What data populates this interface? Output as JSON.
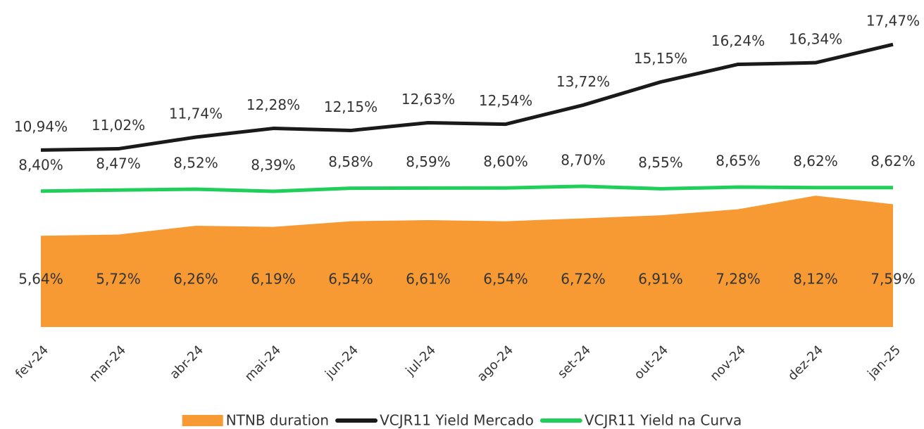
{
  "chart_data": {
    "type": "line",
    "categories": [
      "fev-24",
      "mar-24",
      "abr-24",
      "mai-24",
      "jun-24",
      "jul-24",
      "ago-24",
      "set-24",
      "out-24",
      "nov-24",
      "dez-24",
      "jan-25"
    ],
    "ylim": [
      0,
      20
    ],
    "series": [
      {
        "name": "NTNB duration",
        "type": "area",
        "color": "#f79a33",
        "values": [
          5.64,
          5.72,
          6.26,
          6.19,
          6.54,
          6.61,
          6.54,
          6.72,
          6.91,
          7.28,
          8.12,
          7.59
        ],
        "value_labels": [
          "5,64%",
          "5,72%",
          "6,26%",
          "6,19%",
          "6,54%",
          "6,61%",
          "6,54%",
          "6,72%",
          "6,91%",
          "7,28%",
          "8,12%",
          "7,59%"
        ]
      },
      {
        "name": "VCJR11 Yield Mercado",
        "type": "line",
        "color": "#1a1a1a",
        "values": [
          10.94,
          11.02,
          11.74,
          12.28,
          12.15,
          12.63,
          12.54,
          13.72,
          15.15,
          16.24,
          16.34,
          17.47
        ],
        "value_labels": [
          "10,94%",
          "11,02%",
          "11,74%",
          "12,28%",
          "12,15%",
          "12,63%",
          "12,54%",
          "13,72%",
          "15,15%",
          "16,24%",
          "16,34%",
          "17,47%"
        ]
      },
      {
        "name": "VCJR11 Yield na Curva",
        "type": "line",
        "color": "#1fcf5a",
        "values": [
          8.4,
          8.47,
          8.52,
          8.39,
          8.58,
          8.59,
          8.6,
          8.7,
          8.55,
          8.65,
          8.62,
          8.62
        ],
        "value_labels": [
          "8,40%",
          "8,47%",
          "8,52%",
          "8,39%",
          "8,58%",
          "8,59%",
          "8,60%",
          "8,70%",
          "8,55%",
          "8,65%",
          "8,62%",
          "8,62%"
        ]
      }
    ]
  }
}
